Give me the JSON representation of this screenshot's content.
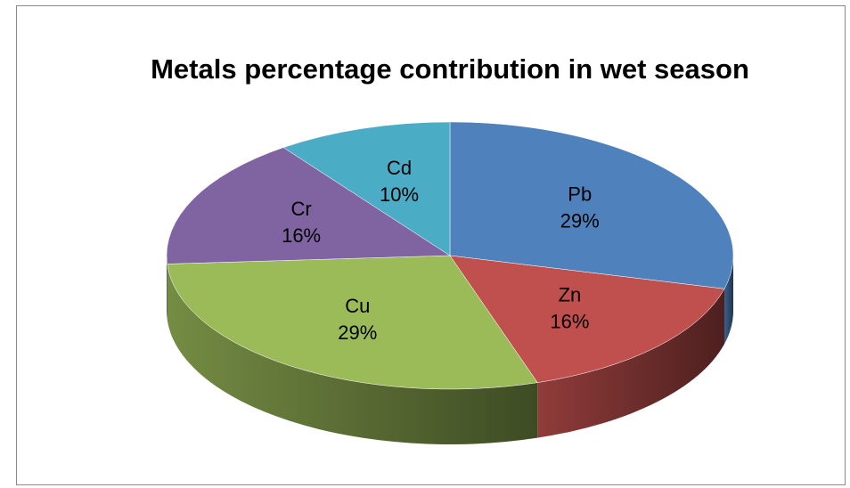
{
  "chart_data": {
    "type": "pie",
    "title": "Metals percentage contribution in wet season",
    "categories": [
      "Pb",
      "Zn",
      "Cu",
      "Cr",
      "Cd"
    ],
    "values": [
      29,
      16,
      29,
      16,
      10
    ],
    "value_labels": [
      "29%",
      "16%",
      "29%",
      "16%",
      "10%"
    ],
    "colors": [
      "#4f81bd",
      "#c0504d",
      "#9bbb59",
      "#8064a2",
      "#4bacc6"
    ]
  }
}
